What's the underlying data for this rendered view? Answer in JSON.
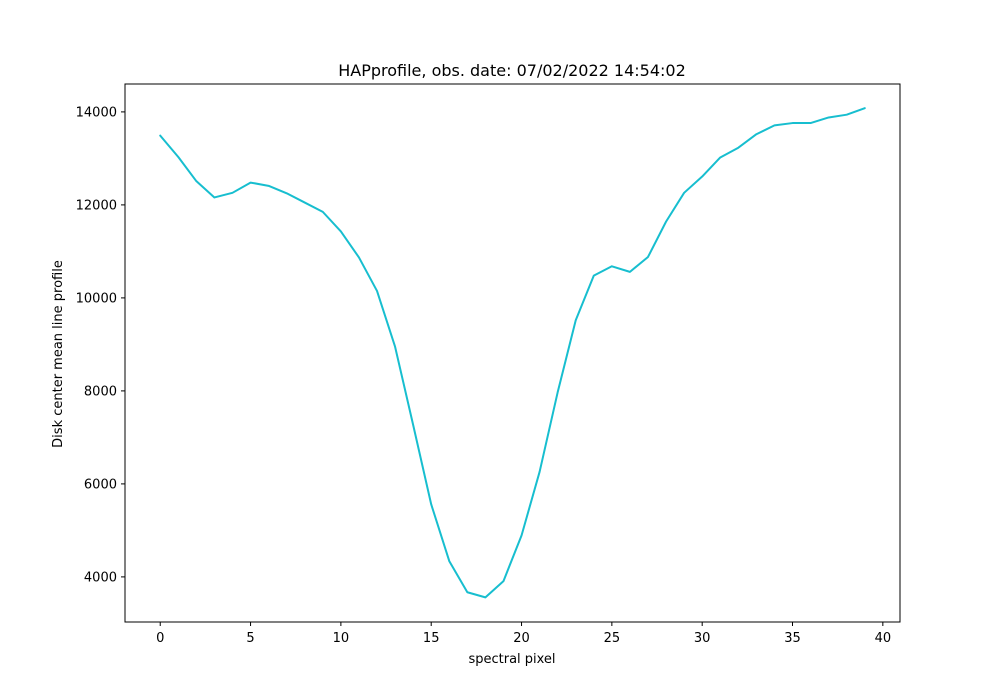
{
  "chart_data": {
    "type": "line",
    "title": "HAPprofile, obs. date: 07/02/2022 14:54:02",
    "xlabel": "spectral pixel",
    "ylabel": "Disk center mean line profile",
    "xlim": [
      -1.95,
      40.95
    ],
    "ylim": [
      3030,
      14600
    ],
    "xticks": [
      0,
      5,
      10,
      15,
      20,
      25,
      30,
      35,
      40
    ],
    "yticks": [
      4000,
      6000,
      8000,
      10000,
      12000,
      14000
    ],
    "xtick_labels": [
      "0",
      "5",
      "10",
      "15",
      "20",
      "25",
      "30",
      "35",
      "40"
    ],
    "ytick_labels": [
      "4000",
      "6000",
      "8000",
      "10000",
      "12000",
      "14000"
    ],
    "grid": false,
    "legend": "none",
    "series": [
      {
        "color": "#17becf",
        "x": [
          0,
          1,
          2,
          3,
          4,
          5,
          6,
          7,
          8,
          9,
          10,
          11,
          12,
          13,
          14,
          15,
          16,
          17,
          18,
          19,
          20,
          21,
          22,
          23,
          24,
          25,
          26,
          27,
          28,
          29,
          30,
          31,
          32,
          33,
          34,
          35,
          36,
          37,
          38,
          39
        ],
        "y": [
          13490,
          13030,
          12510,
          12160,
          12260,
          12480,
          12410,
          12250,
          12050,
          11850,
          11430,
          10870,
          10150,
          8950,
          7270,
          5560,
          4340,
          3670,
          3560,
          3910,
          4890,
          6260,
          7970,
          9520,
          10480,
          10680,
          10560,
          10880,
          11640,
          12260,
          12610,
          13020,
          13230,
          13520,
          13710,
          13760,
          13760,
          13880,
          13940,
          14080
        ]
      }
    ]
  }
}
